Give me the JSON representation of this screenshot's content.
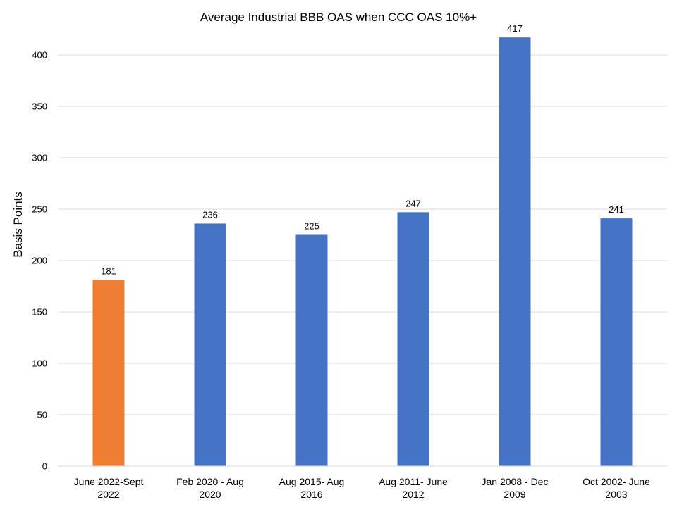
{
  "chart_data": {
    "type": "bar",
    "title": "Average Industrial BBB OAS when CCC OAS 10%+",
    "xlabel": "",
    "ylabel": "Basis Points",
    "ylim": [
      0,
      400
    ],
    "yticks": [
      0,
      50,
      100,
      150,
      200,
      250,
      300,
      350,
      400
    ],
    "grid": true,
    "categories": [
      [
        "June 2022-Sept",
        "2022"
      ],
      [
        "Feb 2020 - Aug",
        "2020"
      ],
      [
        "Aug 2015- Aug",
        "2016"
      ],
      [
        "Aug 2011- June",
        "2012"
      ],
      [
        "Jan 2008 - Dec",
        "2009"
      ],
      [
        "Oct 2002- June",
        "2003"
      ]
    ],
    "values": [
      181,
      236,
      225,
      247,
      417,
      241
    ],
    "bar_colors": [
      "#ED7D31",
      "#4472C4",
      "#4472C4",
      "#4472C4",
      "#4472C4",
      "#4472C4"
    ],
    "gridline_color": "#D9D9D9"
  }
}
